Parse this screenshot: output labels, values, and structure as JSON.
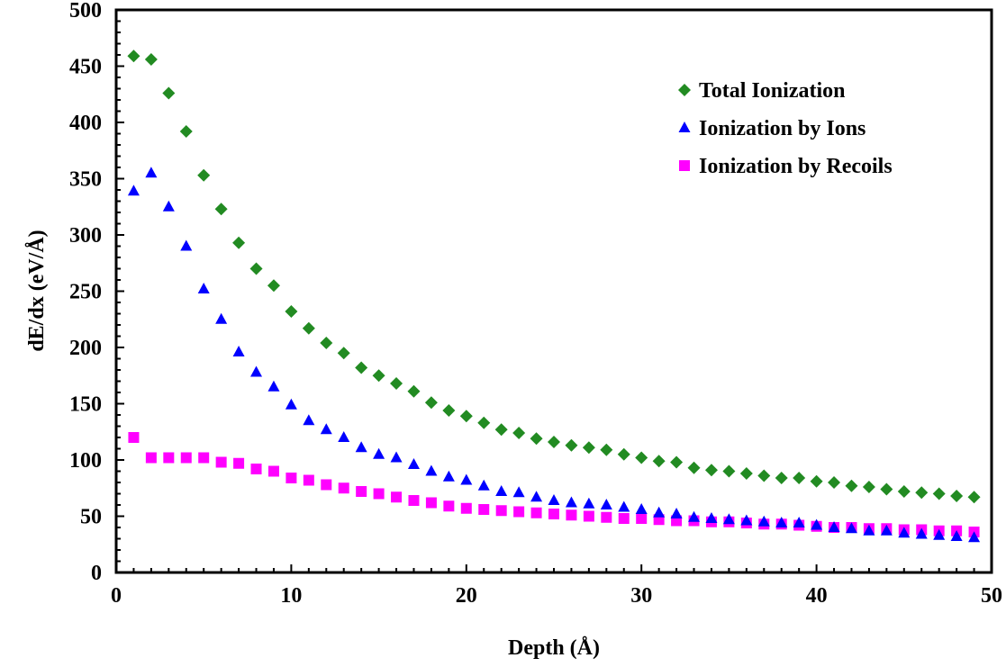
{
  "chart_data": {
    "type": "scatter",
    "title": "",
    "xlabel": "Depth (Å)",
    "ylabel": "dE/dx (eV/Å)",
    "xlim": [
      0,
      50
    ],
    "ylim": [
      0,
      500
    ],
    "x_ticks": [
      "0",
      "10",
      "20",
      "30",
      "40",
      "50"
    ],
    "y_ticks": [
      "0",
      "50",
      "100",
      "150",
      "200",
      "250",
      "300",
      "350",
      "400",
      "450",
      "500"
    ],
    "grid": false,
    "legend_position": "top-right",
    "x": [
      1,
      2,
      3,
      4,
      5,
      6,
      7,
      8,
      9,
      10,
      11,
      12,
      13,
      14,
      15,
      16,
      17,
      18,
      19,
      20,
      21,
      22,
      23,
      24,
      25,
      26,
      27,
      28,
      29,
      30,
      31,
      32,
      33,
      34,
      35,
      36,
      37,
      38,
      39,
      40,
      41,
      42,
      43,
      44,
      45,
      46,
      47,
      48,
      49
    ],
    "series": [
      {
        "name": "Total Ionization",
        "color": "#228B22",
        "marker": "diamond",
        "values": [
          459,
          456,
          426,
          392,
          353,
          323,
          293,
          270,
          255,
          232,
          217,
          204,
          195,
          182,
          175,
          168,
          161,
          151,
          144,
          139,
          133,
          127,
          124,
          119,
          116,
          113,
          111,
          109,
          105,
          102,
          99,
          98,
          93,
          91,
          90,
          88,
          86,
          84,
          84,
          81,
          80,
          77,
          76,
          74,
          72,
          71,
          70,
          68,
          67
        ]
      },
      {
        "name": "Ionization by Ions",
        "color": "#0000FF",
        "marker": "triangle",
        "values": [
          339,
          355,
          325,
          290,
          252,
          225,
          196,
          178,
          165,
          149,
          135,
          127,
          120,
          111,
          105,
          102,
          96,
          90,
          85,
          82,
          77,
          72,
          71,
          67,
          64,
          62,
          61,
          60,
          58,
          56,
          53,
          52,
          49,
          48,
          47,
          46,
          45,
          44,
          44,
          42,
          40,
          39,
          37,
          37,
          35,
          34,
          33,
          32,
          31
        ]
      },
      {
        "name": "Ionization by Recoils",
        "color": "#FF00FF",
        "marker": "square",
        "values": [
          120,
          102,
          102,
          102,
          102,
          98,
          97,
          92,
          90,
          84,
          82,
          78,
          75,
          72,
          70,
          67,
          64,
          62,
          59,
          57,
          56,
          55,
          54,
          53,
          52,
          51,
          50,
          49,
          48,
          48,
          47,
          46,
          46,
          45,
          45,
          44,
          43,
          43,
          42,
          41,
          40,
          40,
          39,
          39,
          38,
          38,
          37,
          37,
          36
        ]
      }
    ]
  }
}
